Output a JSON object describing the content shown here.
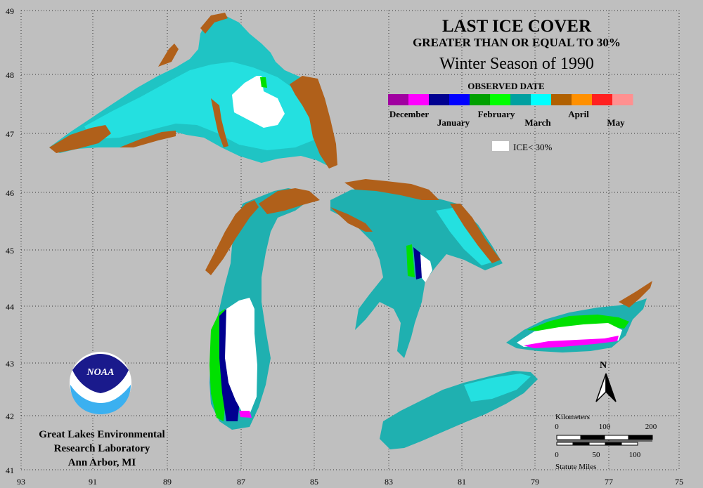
{
  "title": {
    "line1": "LAST ICE COVER",
    "line2": "GREATER THAN OR EQUAL TO 30%",
    "line3": "Winter Season of 1990"
  },
  "legend": {
    "heading": "OBSERVED DATE",
    "months_upper": [
      "December",
      "February",
      "April"
    ],
    "months_lower": [
      "January",
      "March",
      "May"
    ],
    "ice_label": "ICE< 30%",
    "segment_colors": [
      "#a000a0",
      "#ff00ff",
      "#000090",
      "#0000ff",
      "#00a000",
      "#00ff00",
      "#00a0a0",
      "#00ffff",
      "#b06000",
      "#ff9000",
      "#ff2020",
      "#ff9090"
    ],
    "ice_color": "#ffffff"
  },
  "axes": {
    "lat_labels": [
      "49",
      "48",
      "47",
      "46",
      "45",
      "44",
      "43",
      "42",
      "41"
    ],
    "lon_labels": [
      "93",
      "91",
      "89",
      "87",
      "85",
      "83",
      "81",
      "79",
      "77",
      "75"
    ]
  },
  "organization": {
    "logo_text": "NOAA",
    "line1": "Great Lakes Environmental",
    "line2": "Research Laboratory",
    "line3": "Ann Arbor, MI"
  },
  "north_arrow": {
    "label": "N"
  },
  "scale_bar": {
    "km_label": "Kilometers",
    "km_ticks": [
      "0",
      "100",
      "200"
    ],
    "mi_ticks": [
      "0",
      "50",
      "100"
    ],
    "mi_label": "Statute Miles"
  },
  "colors": {
    "background": "#bfbfbf",
    "water_march": "#1fb0b0",
    "water_light": "#20d8d8",
    "april": "#b0601a",
    "january": "#000090",
    "february": "#00e000",
    "december": "#ff00ff",
    "ice_lt_30": "#ffffff"
  }
}
